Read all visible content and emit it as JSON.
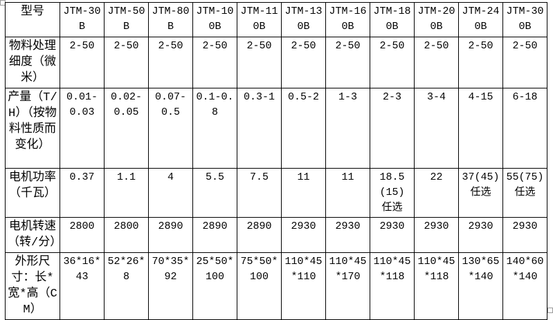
{
  "table": {
    "rows": [
      {
        "label": "型号",
        "cells": [
          "JTM-30B",
          "JTM-50B",
          "JTM-80B",
          "JTM-100B",
          "JTM-110B",
          "JTM-130B",
          "JTM-160B",
          "JTM-180B",
          "JTM-200B",
          "JTM-240B",
          "JTM-300B"
        ]
      },
      {
        "label": "物料处理细度（微米）",
        "cells": [
          "2-50",
          "2-50",
          "2-50",
          "2-50",
          "2-50",
          "2-50",
          "2-50",
          "2-50",
          "2-50",
          "2-50",
          "2-50"
        ]
      },
      {
        "label": "产量（T/H）（按物料性质而变化）",
        "cells": [
          "0.01-0.03",
          "0.02-0.05",
          "0.07-0.5",
          "0.1-0.8",
          "0.3-1",
          "0.5-2",
          "1-3",
          "2-3",
          "3-4",
          "4-15",
          "6-18"
        ]
      },
      {
        "label": "电机功率（千瓦）",
        "cells": [
          "0.37",
          "1.1",
          "4",
          "5.5",
          "7.5",
          "11",
          "11",
          "18.5\n(15)\n任选",
          "22",
          "37(45)任选",
          "55(75)任选"
        ]
      },
      {
        "label": "电机转速（转/分）",
        "cells": [
          "2800",
          "2800",
          "2890",
          "2890",
          "2890",
          "2930",
          "2930",
          "2930",
          "2930",
          "2930",
          "2930"
        ]
      },
      {
        "label": "外形尺寸：长*宽*高（CM）",
        "cells": [
          "36*16*43",
          "52*26*8",
          "70*35*92",
          "25*50*100",
          "75*50*100",
          "110*45*110",
          "110*45*170",
          "110*45*118",
          "110*45*118",
          "130*65*140",
          "140*60*140"
        ]
      }
    ]
  }
}
